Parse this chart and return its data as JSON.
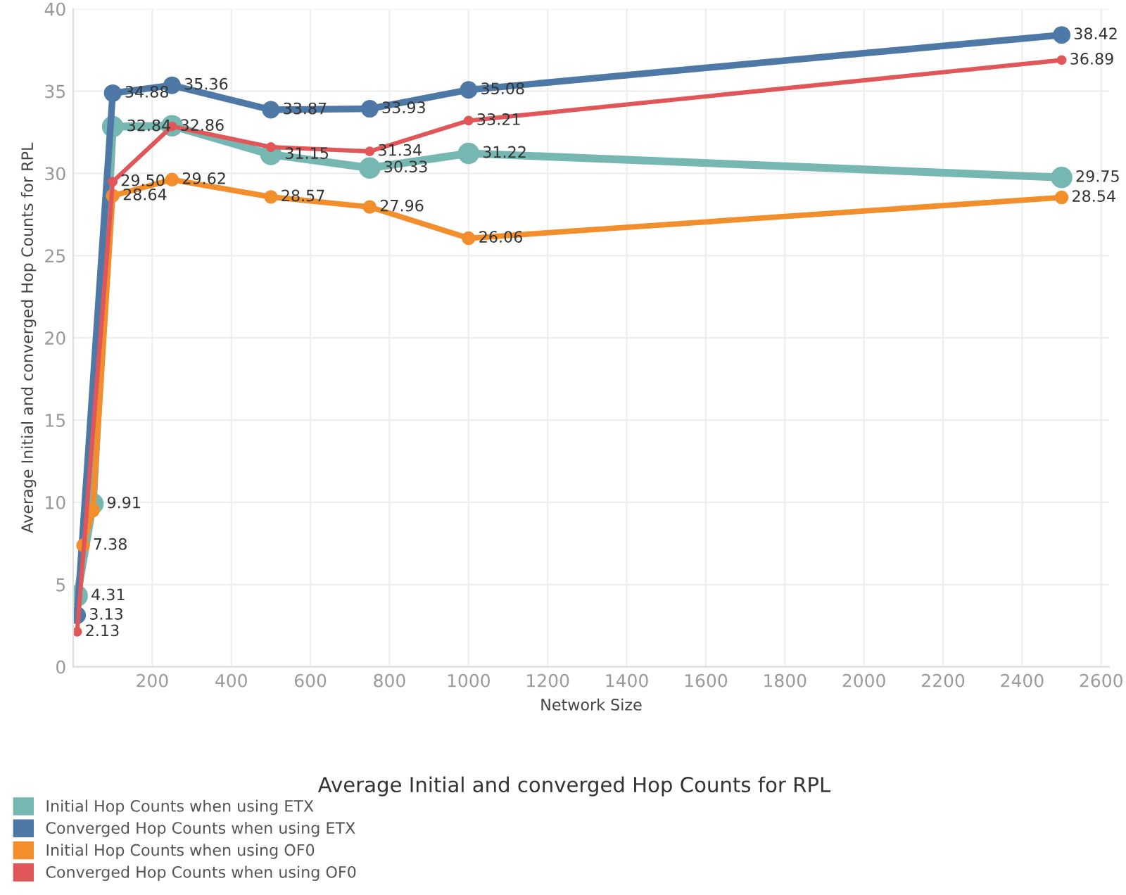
{
  "chart_data": {
    "type": "line",
    "title": "Average Initial and converged Hop Counts for RPL",
    "xlabel": "Network Size",
    "ylabel": "Average Initial and converged Hop Counts for RPL",
    "xlim": [
      0,
      2620
    ],
    "xticks": [
      200,
      400,
      600,
      800,
      1000,
      1200,
      1400,
      1600,
      1800,
      2000,
      2200,
      2400,
      2600
    ],
    "ylim": [
      0,
      40
    ],
    "yticks": [
      0,
      5,
      10,
      15,
      20,
      25,
      30,
      35,
      40
    ],
    "grid": true,
    "legend": "bottom left",
    "marker": "circle",
    "line_style": "solid",
    "series": [
      {
        "name": "Initial Hop Counts when using ETX",
        "color": "#76b7b2",
        "x": [
          10,
          50,
          100,
          250,
          500,
          750,
          1000,
          2500
        ],
        "values": [
          4.31,
          9.91,
          32.84,
          32.9,
          31.15,
          30.33,
          31.22,
          29.75
        ],
        "value_labels": [
          "4.31",
          "9.91",
          "32.84",
          null,
          "31.15",
          "30.33",
          "31.22",
          "29.75"
        ]
      },
      {
        "name": "Converged Hop Counts when using ETX",
        "color": "#4e79a7",
        "x": [
          10,
          100,
          250,
          500,
          750,
          1000,
          2500
        ],
        "values": [
          3.13,
          34.88,
          35.36,
          33.87,
          33.93,
          35.08,
          38.42
        ],
        "value_labels": [
          "3.13",
          "34.88",
          "35.36",
          "33.87",
          "33.93",
          "35.08",
          "38.42"
        ]
      },
      {
        "name": "Initial Hop Counts when using OF0",
        "color": "#f28e2b",
        "x": [
          25,
          50,
          100,
          250,
          500,
          750,
          1000,
          2500
        ],
        "values": [
          7.38,
          9.5,
          28.64,
          29.62,
          28.57,
          27.96,
          26.06,
          28.54
        ],
        "value_labels": [
          "7.38",
          null,
          "28.64",
          "29.62",
          "28.57",
          "27.96",
          "26.06",
          "28.54"
        ]
      },
      {
        "name": "Converged Hop Counts when using OF0",
        "color": "#e15759",
        "x": [
          10,
          100,
          250,
          500,
          750,
          1000,
          2500
        ],
        "values": [
          2.13,
          29.5,
          32.86,
          31.6,
          31.34,
          33.21,
          36.89
        ],
        "value_labels": [
          "2.13",
          "29.50",
          "32.86",
          null,
          "31.34",
          "33.21",
          "36.89"
        ]
      }
    ]
  }
}
